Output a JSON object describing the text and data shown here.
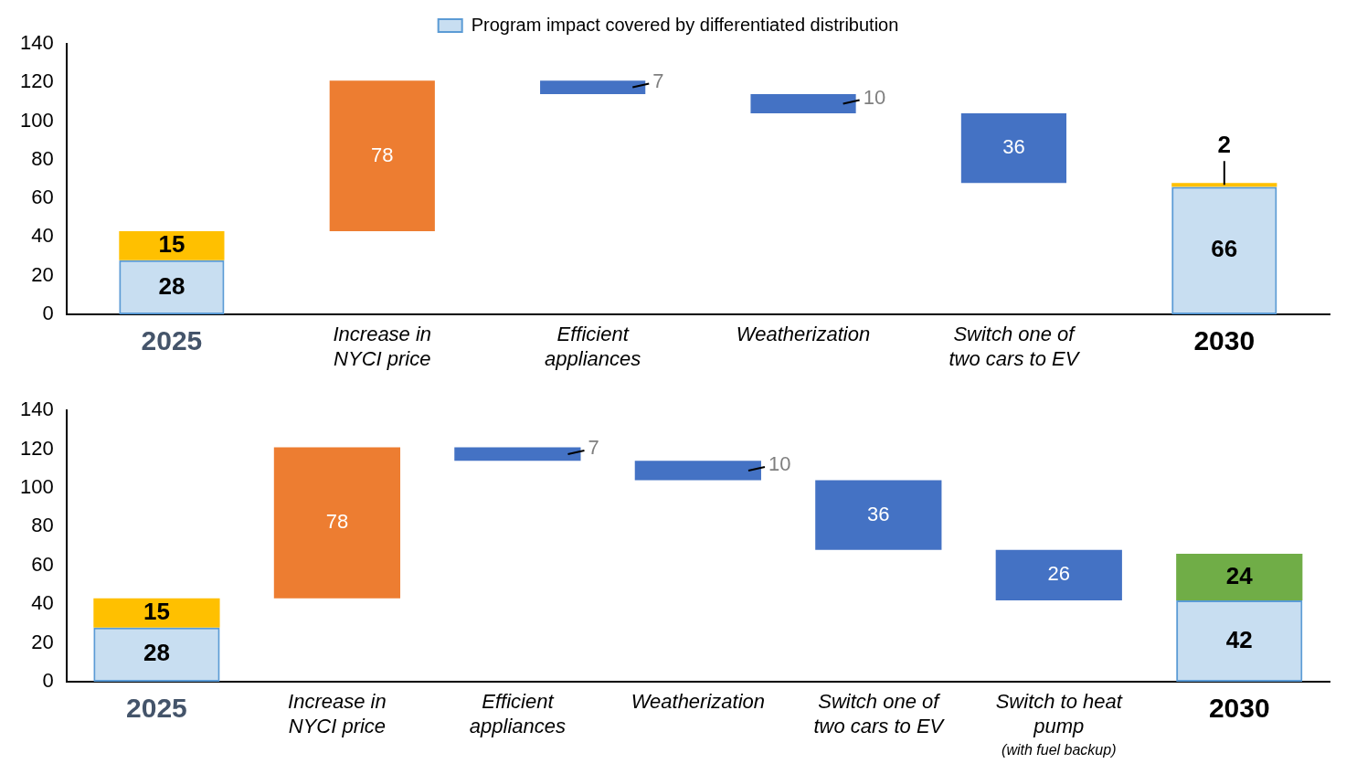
{
  "chart_data": [
    {
      "type": "bar",
      "categories": [
        "2025",
        "Increase in\nNYCI price",
        "Efficient\nappliances",
        "Weatherization",
        "Switch one of\ntwo cars to EV",
        "2030"
      ],
      "series": [
        {
          "name": "Program impact covered by differentiated distribution",
          "color": "#5b9bd5",
          "values": [
            28,
            null,
            null,
            null,
            null,
            66
          ],
          "base": [
            0,
            null,
            null,
            null,
            null,
            0
          ]
        },
        {
          "color": "#ffc000",
          "values": [
            15,
            null,
            null,
            null,
            null,
            2
          ],
          "base": [
            28,
            null,
            null,
            null,
            null,
            66
          ]
        },
        {
          "color": "#ed7d31",
          "values": [
            null,
            78,
            null,
            null,
            null,
            null
          ],
          "base": [
            null,
            43,
            null,
            null,
            null,
            null
          ]
        },
        {
          "color": "#4472c4",
          "values": [
            null,
            null,
            7,
            10,
            36,
            null
          ],
          "base": [
            null,
            null,
            114,
            104,
            68,
            null
          ]
        }
      ],
      "ylim": [
        0,
        140
      ],
      "yticks": [
        0,
        20,
        40,
        60,
        80,
        100,
        120,
        140
      ],
      "legend": "top",
      "data_labels": true,
      "grid": false
    },
    {
      "type": "bar",
      "categories": [
        "2025",
        "Increase in\nNYCI price",
        "Efficient\nappliances",
        "Weatherization",
        "Switch one of\ntwo cars to EV",
        "Switch to heat\npump\n(with fuel backup)",
        "2030"
      ],
      "series": [
        {
          "color": "#5b9bd5",
          "values": [
            28,
            null,
            null,
            null,
            null,
            null,
            42
          ],
          "base": [
            0,
            null,
            null,
            null,
            null,
            null,
            0
          ]
        },
        {
          "color": "#ffc000",
          "values": [
            15,
            null,
            null,
            null,
            null,
            null,
            null
          ],
          "base": [
            28,
            null,
            null,
            null,
            null,
            null,
            null
          ]
        },
        {
          "color": "#ed7d31",
          "values": [
            null,
            78,
            null,
            null,
            null,
            null,
            null
          ],
          "base": [
            null,
            43,
            null,
            null,
            null,
            null,
            null
          ]
        },
        {
          "color": "#4472c4",
          "values": [
            null,
            null,
            7,
            10,
            36,
            26,
            null
          ],
          "base": [
            null,
            null,
            114,
            104,
            68,
            42,
            null
          ]
        },
        {
          "color": "#70ad47",
          "values": [
            null,
            null,
            null,
            null,
            null,
            null,
            24
          ],
          "base": [
            null,
            null,
            null,
            null,
            null,
            null,
            42
          ]
        }
      ],
      "ylim": [
        0,
        140
      ],
      "yticks": [
        0,
        20,
        40,
        60,
        80,
        100,
        120,
        140
      ],
      "data_labels": true,
      "grid": false
    }
  ]
}
